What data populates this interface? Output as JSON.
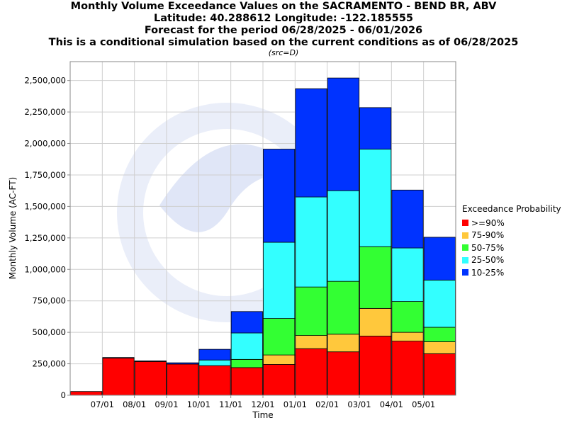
{
  "chart_data": {
    "type": "bar",
    "stacked": true,
    "title": [
      "Monthly Volume Exceedance Values on the SACRAMENTO - BEND BR, ABV",
      "Latitude: 40.288612 Longitude: -122.185555",
      "Forecast for the period 06/28/2025 - 06/01/2026",
      "This is a conditional simulation based on the current conditions as of 06/28/2025"
    ],
    "subtitle": "(src=D)",
    "xlabel": "Time",
    "ylabel": "Monthly Volume (AC-FT)",
    "ylim": [
      0,
      2650000
    ],
    "yticks": [
      0,
      250000,
      500000,
      750000,
      1000000,
      1250000,
      1500000,
      1750000,
      2000000,
      2250000,
      2500000
    ],
    "ytick_labels": [
      "0",
      "250,000",
      "500,000",
      "750,000",
      "1,000,000",
      "1,250,000",
      "1,500,000",
      "1,750,000",
      "2,000,000",
      "2,250,000",
      "2,500,000"
    ],
    "xtick_labels": [
      "07/01",
      "08/01",
      "09/01",
      "10/01",
      "11/01",
      "12/01",
      "01/01",
      "02/01",
      "03/01",
      "04/01",
      "05/01"
    ],
    "categories": [
      "06/2025",
      "07/2025",
      "08/2025",
      "09/2025",
      "10/2025",
      "11/2025",
      "12/2025",
      "01/2026",
      "02/2026",
      "03/2026",
      "04/2026",
      "05/2026"
    ],
    "grid": true,
    "legend_title": "Exceedance Probability",
    "legend_position": "right",
    "series": [
      {
        "name": ">=90%",
        "color": "#ff0000",
        "values": [
          30000,
          295000,
          268000,
          248000,
          235000,
          220000,
          245000,
          370000,
          345000,
          470000,
          430000,
          330000
        ]
      },
      {
        "name": "75-90%",
        "color": "#ffc83c",
        "values": [
          0,
          0,
          0,
          0,
          0,
          0,
          75000,
          105000,
          140000,
          220000,
          70000,
          95000
        ]
      },
      {
        "name": "50-75%",
        "color": "#33ff33",
        "values": [
          0,
          0,
          0,
          0,
          0,
          65000,
          290000,
          385000,
          420000,
          490000,
          245000,
          115000
        ]
      },
      {
        "name": "25-50%",
        "color": "#33ffff",
        "values": [
          0,
          0,
          0,
          0,
          45000,
          210000,
          605000,
          715000,
          720000,
          775000,
          425000,
          375000
        ]
      },
      {
        "name": "10-25%",
        "color": "#0033ff",
        "values": [
          0,
          5000,
          5000,
          10000,
          85000,
          170000,
          740000,
          860000,
          895000,
          330000,
          460000,
          340000
        ]
      }
    ]
  }
}
